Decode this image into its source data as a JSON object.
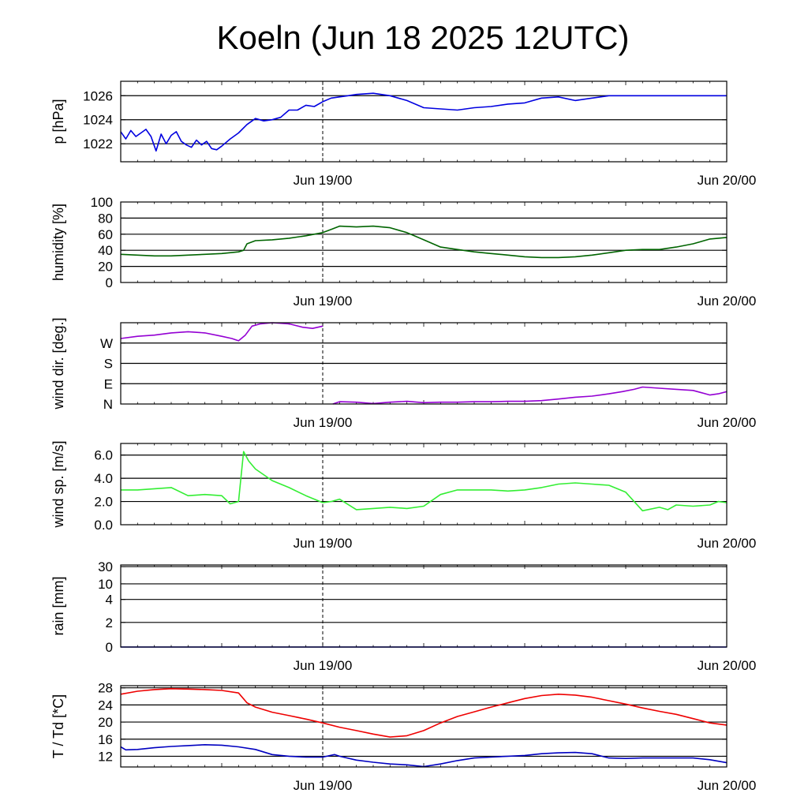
{
  "title": "Koeln (Jun 18 2025 12UTC)",
  "colors": {
    "pressure": "#0000e0",
    "humidity": "#006400",
    "wind_dir": "#9400d3",
    "wind_speed": "#33ee33",
    "rain": "#0000e0",
    "temperature": "#ee0000",
    "dewpoint": "#0000c0",
    "grid": "#000000"
  },
  "chart_data": [
    {
      "type": "line",
      "id": "pressure",
      "ylabel": "p [hPa]",
      "x_ticks": [
        "Jun 19/00",
        "Jun 20/00"
      ],
      "ylim": [
        1020.5,
        1027.2
      ],
      "yticks": [
        1022,
        1024,
        1026
      ],
      "ytick_labels": [
        "1022",
        "1024",
        "1026"
      ],
      "grid_y": [
        1022,
        1024,
        1026
      ],
      "series": [
        {
          "color_key": "pressure",
          "x": [
            0,
            0.3,
            0.6,
            0.9,
            1.2,
            1.5,
            1.8,
            2.1,
            2.4,
            2.7,
            3.0,
            3.3,
            3.6,
            3.9,
            4.2,
            4.5,
            4.8,
            5.1,
            5.4,
            5.7,
            6.0,
            6.5,
            7.0,
            7.5,
            8.0,
            8.5,
            9.0,
            9.5,
            10.0,
            10.5,
            11.0,
            11.5,
            12.0,
            12.5,
            13.0,
            13.5,
            14.0,
            15.0,
            16.0,
            17.0,
            18.0,
            19.0,
            20.0,
            21.0,
            22.0,
            23.0,
            24.0,
            25.0,
            26.0,
            27.0,
            28.0,
            29.0,
            30.0,
            31.0,
            32.0,
            33.0,
            34.0,
            34.5,
            35.0,
            35.5,
            36.0
          ],
          "y": [
            1023.0,
            1022.4,
            1023.1,
            1022.6,
            1022.9,
            1023.2,
            1022.6,
            1021.4,
            1022.8,
            1022.0,
            1022.7,
            1023.0,
            1022.2,
            1021.9,
            1021.7,
            1022.3,
            1021.9,
            1022.2,
            1021.6,
            1021.5,
            1021.8,
            1022.4,
            1022.9,
            1023.6,
            1024.1,
            1023.9,
            1024.0,
            1024.2,
            1024.8,
            1024.8,
            1025.2,
            1025.1,
            1025.5,
            1025.8,
            1025.9,
            1026.0,
            1026.1,
            1026.2,
            1026.0,
            1025.6,
            1025.0,
            1024.9,
            1024.8,
            1025.0,
            1025.1,
            1025.3,
            1025.4,
            1025.8,
            1025.9,
            1025.6,
            1025.8,
            1026.0,
            1026.0,
            1026.0,
            1026.0,
            1026.0,
            1026.0,
            1026.0,
            1026.0,
            1026.0,
            1026.0
          ]
        }
      ]
    },
    {
      "type": "line",
      "id": "humidity",
      "ylabel": "humidity [%]",
      "x_ticks": [
        "Jun 19/00",
        "Jun 20/00"
      ],
      "ylim": [
        0,
        100
      ],
      "yticks": [
        0,
        20,
        40,
        60,
        80,
        100
      ],
      "ytick_labels": [
        "0",
        "20",
        "40",
        "60",
        "80",
        "100"
      ],
      "grid_y": [
        20,
        40,
        60,
        80
      ],
      "series": [
        {
          "color_key": "humidity",
          "x": [
            0,
            1,
            2,
            3,
            4,
            5,
            6,
            7,
            7.3,
            7.5,
            8,
            9,
            10,
            11,
            12,
            12.5,
            13,
            14,
            15,
            16,
            17,
            18,
            19,
            20,
            21,
            22,
            23,
            24,
            25,
            26,
            27,
            28,
            29,
            30,
            31,
            32,
            33,
            34,
            35,
            36
          ],
          "y": [
            35,
            34,
            33,
            33,
            34,
            35,
            36,
            38,
            40,
            48,
            52,
            53,
            55,
            58,
            62,
            66,
            70,
            69,
            70,
            68,
            62,
            53,
            44,
            41,
            38,
            36,
            34,
            32,
            31,
            31,
            32,
            34,
            37,
            40,
            41,
            41,
            44,
            48,
            54,
            56
          ]
        }
      ]
    },
    {
      "type": "line",
      "id": "wind_dir",
      "ylabel": "wind dir. [deg.]",
      "x_ticks": [
        "Jun 19/00",
        "Jun 20/00"
      ],
      "ylim": [
        0,
        360
      ],
      "yticks": [
        0,
        90,
        180,
        270
      ],
      "ytick_labels": [
        "N",
        "E",
        "S",
        "W"
      ],
      "grid_y": [
        90,
        180,
        270
      ],
      "series": [
        {
          "color_key": "wind_dir",
          "x": [
            0,
            1,
            2,
            3,
            4,
            5,
            6,
            6.6,
            7,
            7.4,
            7.8,
            8.3,
            9,
            10,
            10.8,
            11.4,
            12,
            12.6,
            13,
            14,
            15,
            16,
            17,
            18,
            19,
            20,
            21,
            22,
            23,
            24,
            25,
            26,
            27,
            28,
            29,
            29.8,
            30.5,
            31,
            32,
            33,
            34,
            34.5,
            35,
            35.5,
            36
          ],
          "y": [
            290,
            300,
            305,
            315,
            320,
            315,
            300,
            290,
            280,
            305,
            345,
            355,
            360,
            355,
            340,
            335,
            345,
            0,
            10,
            8,
            2,
            8,
            12,
            6,
            8,
            8,
            10,
            10,
            12,
            12,
            15,
            22,
            30,
            35,
            45,
            55,
            65,
            75,
            70,
            65,
            60,
            50,
            40,
            45,
            55
          ]
        }
      ]
    },
    {
      "type": "line",
      "id": "wind_speed",
      "ylabel": "wind sp. [m/s]",
      "x_ticks": [
        "Jun 19/00",
        "Jun 20/00"
      ],
      "ylim": [
        0,
        7
      ],
      "yticks": [
        0,
        2,
        4,
        6
      ],
      "ytick_labels": [
        "0.0",
        "2.0",
        "4.0",
        "6.0"
      ],
      "grid_y": [
        2,
        4,
        6
      ],
      "series": [
        {
          "color_key": "wind_speed",
          "x": [
            0,
            1,
            2,
            3,
            4,
            5,
            6,
            6.5,
            7,
            7.3,
            7.6,
            8,
            9,
            10,
            11,
            12,
            12.5,
            13,
            14,
            15,
            16,
            17,
            18,
            19,
            20,
            21,
            22,
            23,
            24,
            25,
            26,
            27,
            28,
            29,
            30,
            31,
            32,
            32.5,
            33,
            34,
            35,
            35.5,
            36
          ],
          "y": [
            3.0,
            3.0,
            3.1,
            3.2,
            2.5,
            2.6,
            2.5,
            1.8,
            2.0,
            6.3,
            5.5,
            4.8,
            3.8,
            3.2,
            2.5,
            1.9,
            2.0,
            2.2,
            1.3,
            1.4,
            1.5,
            1.4,
            1.6,
            2.6,
            3.0,
            3.0,
            3.0,
            2.9,
            3.0,
            3.2,
            3.5,
            3.6,
            3.5,
            3.4,
            2.8,
            1.2,
            1.5,
            1.3,
            1.7,
            1.6,
            1.7,
            2.0,
            1.9
          ]
        }
      ]
    },
    {
      "type": "line",
      "id": "rain",
      "ylabel": "rain [mm]",
      "x_ticks": [
        "Jun 19/00",
        "Jun 20/00"
      ],
      "yticks": [
        0,
        2,
        4,
        10,
        30
      ],
      "ytick_labels": [
        "0",
        "2",
        "4",
        "10",
        "30"
      ],
      "grid_y": [
        2,
        4,
        10,
        30
      ],
      "series": [
        {
          "color_key": "rain",
          "x": [
            0,
            36
          ],
          "y": [
            0,
            0
          ]
        }
      ]
    },
    {
      "type": "line",
      "id": "temperature",
      "ylabel": "T / Td [*C]",
      "x_ticks": [
        "Jun 19/00",
        "Jun 20/00"
      ],
      "ylim": [
        9.5,
        28.5
      ],
      "yticks": [
        12,
        16,
        20,
        24,
        28
      ],
      "ytick_labels": [
        "12",
        "16",
        "20",
        "24",
        "28"
      ],
      "grid_y": [
        12,
        16,
        20,
        24,
        28
      ],
      "series": [
        {
          "name": "T",
          "color_key": "temperature",
          "x": [
            0,
            1,
            2,
            3,
            4,
            5,
            6,
            7,
            7.5,
            8,
            9,
            10,
            11,
            12,
            13,
            14,
            15,
            16,
            17,
            18,
            19,
            20,
            21,
            22,
            23,
            24,
            25,
            26,
            27,
            28,
            29,
            30,
            31,
            32,
            33,
            34,
            35,
            36
          ],
          "y": [
            26.5,
            27.2,
            27.6,
            27.8,
            27.7,
            27.6,
            27.4,
            26.8,
            24.5,
            23.5,
            22.3,
            21.5,
            20.7,
            19.8,
            18.8,
            18.0,
            17.2,
            16.5,
            16.8,
            18.0,
            19.8,
            21.3,
            22.4,
            23.5,
            24.5,
            25.5,
            26.2,
            26.5,
            26.3,
            25.8,
            25.0,
            24.2,
            23.3,
            22.5,
            21.8,
            20.8,
            19.8,
            19.3
          ]
        },
        {
          "name": "Td",
          "color_key": "dewpoint",
          "x": [
            0,
            0.3,
            1,
            2,
            3,
            4,
            5,
            6,
            7,
            8,
            9,
            10,
            11,
            12,
            12.7,
            13,
            14,
            15,
            16,
            17,
            18,
            19,
            20,
            21,
            22,
            23,
            24,
            25,
            26,
            27,
            28,
            29,
            30,
            31,
            32,
            33,
            34,
            35,
            36
          ],
          "y": [
            14.2,
            13.5,
            13.6,
            14.0,
            14.3,
            14.5,
            14.7,
            14.6,
            14.2,
            13.6,
            12.4,
            12.0,
            11.8,
            11.8,
            12.4,
            12.0,
            11.1,
            10.6,
            10.2,
            10.0,
            9.6,
            10.2,
            11.0,
            11.6,
            11.8,
            12.0,
            12.2,
            12.6,
            12.8,
            12.9,
            12.6,
            11.6,
            11.5,
            11.6,
            11.6,
            11.6,
            11.6,
            11.2,
            10.5
          ]
        }
      ]
    }
  ]
}
